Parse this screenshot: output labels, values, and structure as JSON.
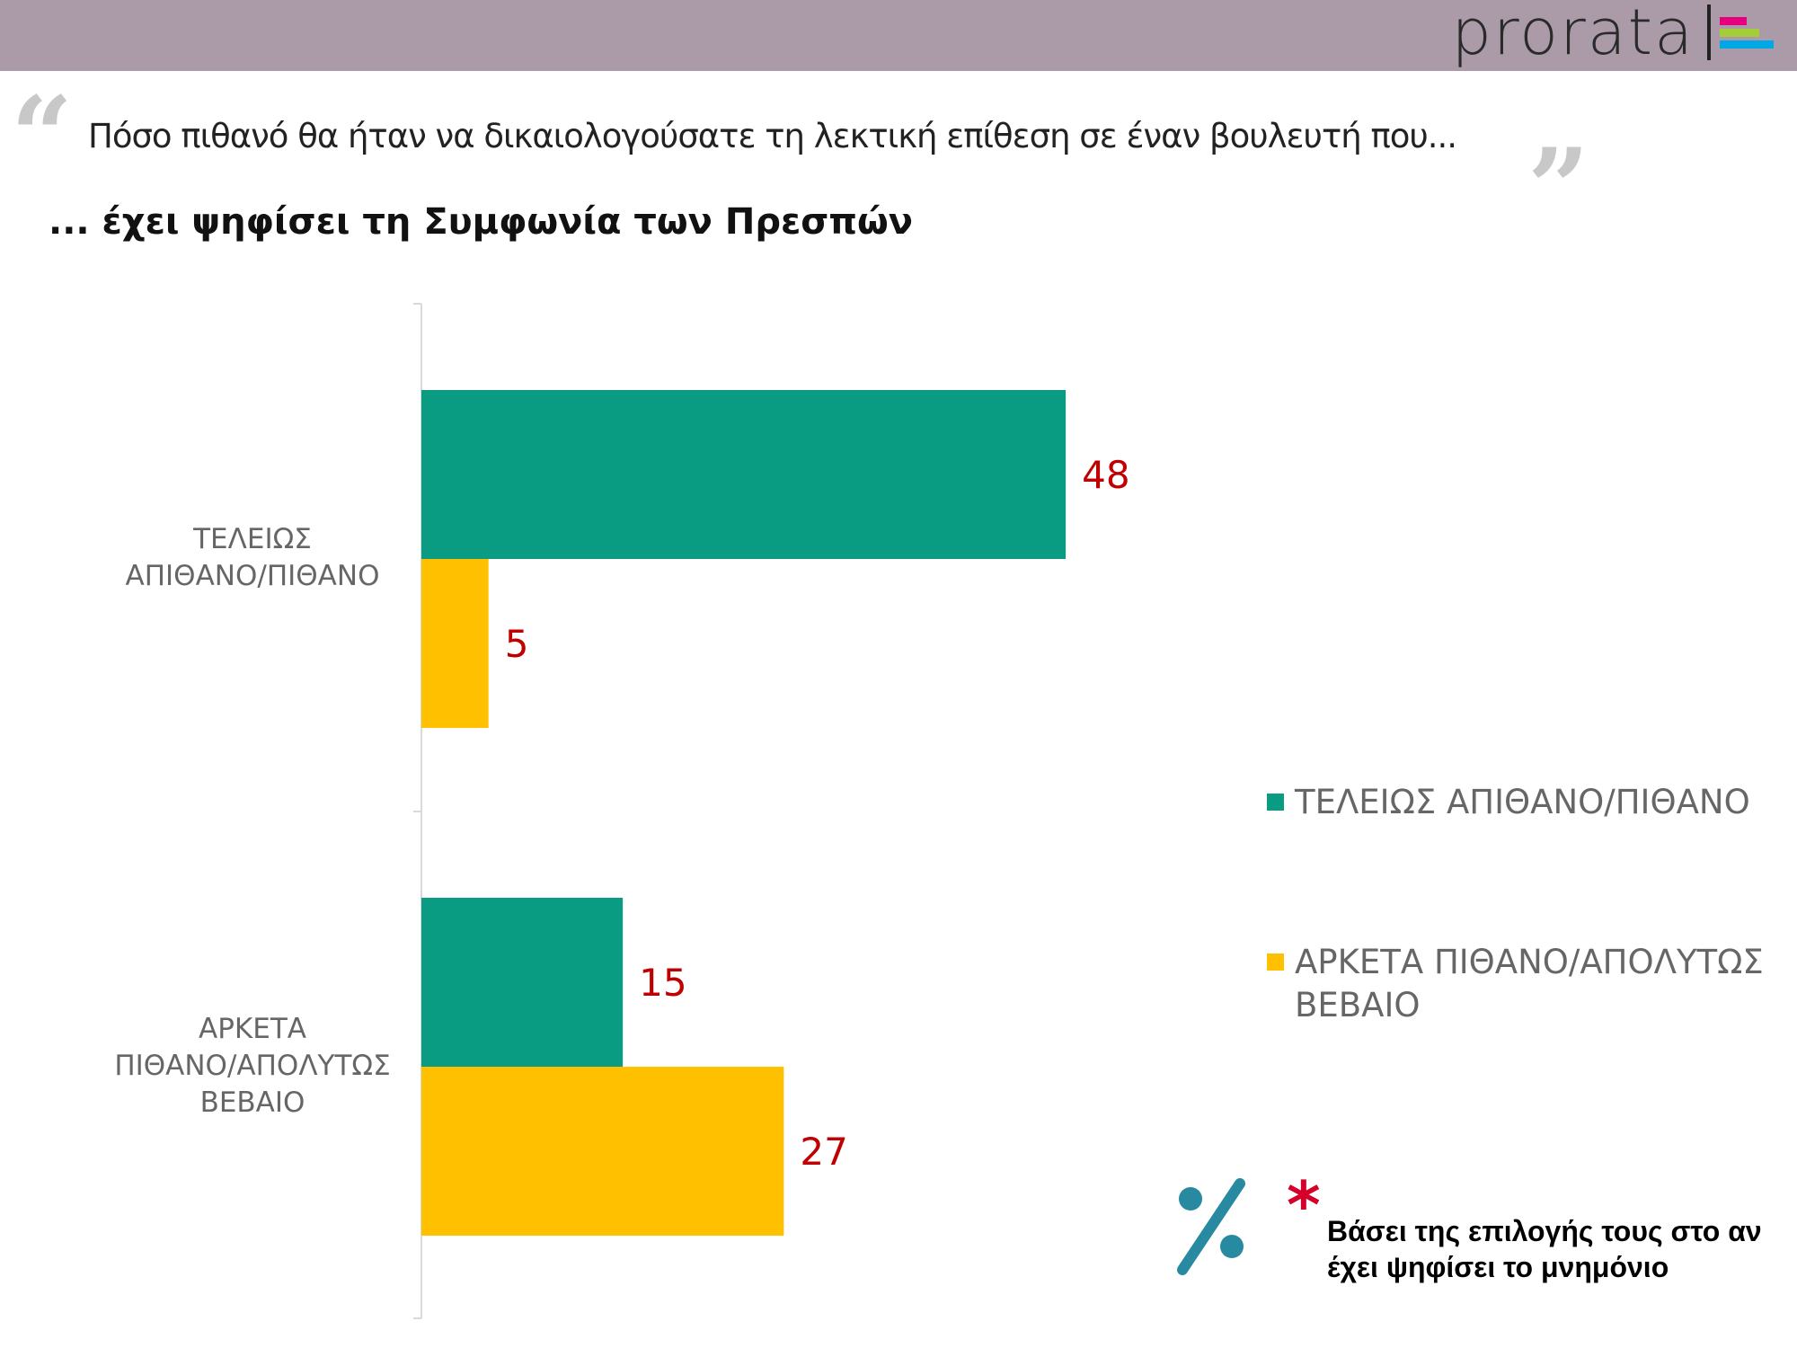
{
  "header": {
    "logo": "prorata",
    "logo_colors": [
      "#e6007e",
      "#a3cd39",
      "#00a8e6"
    ],
    "background": "#ab9aa8"
  },
  "question": "Πόσο πιθανό θα ήταν να δικαιολογούσατε τη λεκτική επίθεση σε έναν βουλευτή που...",
  "subtitle": "... έχει ψηφίσει τη Συμφωνία των Πρεσπών",
  "footnote": {
    "line1": "Βάσει της επιλογής τους στο αν",
    "line2": "έχει ψηφίσει το μνημόνιο",
    "icon": "percent-icon",
    "marker": "*"
  },
  "chart_data": {
    "type": "bar",
    "orientation": "horizontal",
    "title": "... έχει ψηφίσει τη Συμφωνία των Πρεσπών",
    "categories": [
      [
        "ΤΕΛΕΙΩΣ",
        "ΑΠΙΘΑΝΟ/ΠΙΘΑΝΟ"
      ],
      [
        "ΑΡΚΕΤΑ",
        "ΠΙΘΑΝΟ/ΑΠΟΛΥΤΩΣ",
        "ΒΕΒΑΙΟ"
      ]
    ],
    "series": [
      {
        "name": "ΤΕΛΕΙΩΣ ΑΠΙΘΑΝΟ/ΠΙΘΑΝΟ",
        "legend_lines": [
          "ΤΕΛΕΙΩΣ ΑΠΙΘΑΝΟ/ΠΙΘΑΝΟ"
        ],
        "color": "#0a9c83",
        "values": [
          48,
          15
        ]
      },
      {
        "name": "ΑΡΚΕΤΑ ΠΙΘΑΝΟ/ΑΠΟΛΥΤΩΣ ΒΕΒΑΙΟ",
        "legend_lines": [
          "ΑΡΚΕΤΑ ΠΙΘΑΝΟ/ΑΠΟΛΥΤΩΣ",
          "ΒΕΒΑΙΟ"
        ],
        "color": "#ffc000",
        "values": [
          5,
          27
        ]
      }
    ],
    "label_color": "#c00000",
    "xlim": [
      0,
      100
    ],
    "legend": "right",
    "grid": false
  }
}
